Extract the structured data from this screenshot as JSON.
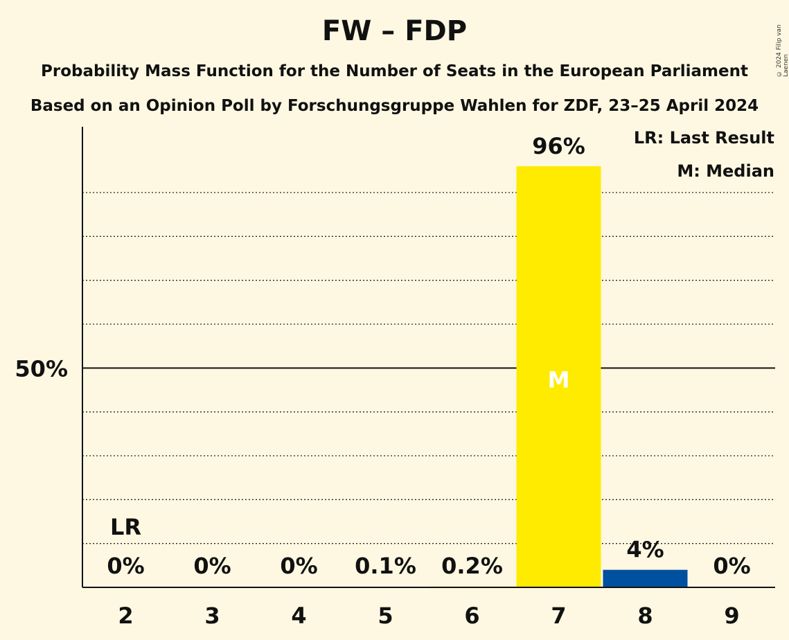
{
  "chart_data": {
    "type": "bar",
    "title": "FW – FDP",
    "subtitle": "Probability Mass Function for the Number of Seats in the European Parliament",
    "subtitle2": "Based on an Opinion Poll by Forschungsgruppe Wahlen for ZDF, 23–25 April 2024",
    "copyright": "© 2024 Filip van Laenen",
    "categories": [
      "2",
      "3",
      "4",
      "5",
      "6",
      "7",
      "8",
      "9"
    ],
    "values": [
      0,
      0,
      0,
      0.1,
      0.2,
      96,
      4,
      0
    ],
    "value_labels": [
      "0%",
      "0%",
      "0%",
      "0.1%",
      "0.2%",
      "96%",
      "4%",
      "0%"
    ],
    "bar_colors": [
      "#FFEB00",
      "#FFEB00",
      "#FFEB00",
      "#FFEB00",
      "#FFEB00",
      "#FFEB00",
      "#0050A0",
      "#FFEB00"
    ],
    "ytick_label": "50%",
    "ylim": [
      0,
      105
    ],
    "last_result": {
      "category": "2",
      "label": "LR"
    },
    "median": {
      "category": "7",
      "label": "M"
    },
    "legend": {
      "lr": "LR: Last Result",
      "m": "M: Median",
      "position": "top-right"
    },
    "colors": {
      "background": "#FEF8E2",
      "median_bar": "#FFEB00",
      "other_bar": "#0050A0"
    }
  }
}
